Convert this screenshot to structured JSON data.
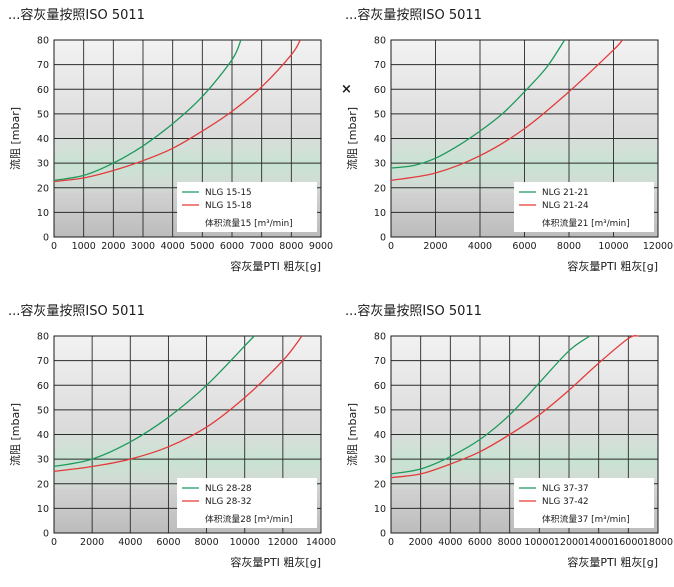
{
  "stray_mark": "×",
  "chart_data": [
    {
      "type": "line",
      "title": "...容灰量按照ISO 5011",
      "xlabel": "容灰量PTI 粗灰[g]",
      "ylabel": "流阻 [mbar]",
      "xlim": [
        0,
        9000
      ],
      "ylim": [
        0,
        80
      ],
      "x_ticks": [
        "0",
        "1000",
        "2000",
        "3000",
        "4000",
        "5000",
        "6000",
        "7000",
        "8000",
        "9000"
      ],
      "y_ticks": [
        "0",
        "10",
        "20",
        "30",
        "40",
        "50",
        "60",
        "70",
        "80"
      ],
      "legend_note": "体积流量15 [m³/min]",
      "legend_position": "bottom-right",
      "series": [
        {
          "name": "NLG 15-15",
          "color": "#1e9a5c",
          "x": [
            0,
            1000,
            2000,
            3000,
            4000,
            5000,
            6000,
            6300
          ],
          "y": [
            23,
            25,
            30,
            37,
            46,
            57,
            72,
            80
          ]
        },
        {
          "name": "NLG 15-18",
          "color": "#e33b3b",
          "x": [
            0,
            1000,
            2000,
            3000,
            4000,
            5000,
            6000,
            7000,
            8000,
            8300
          ],
          "y": [
            22.5,
            24,
            27,
            31,
            36,
            43,
            51,
            61,
            74,
            80
          ]
        }
      ]
    },
    {
      "type": "line",
      "title": "...容灰量按照ISO 5011",
      "xlabel": "容灰量PTI 粗灰[g]",
      "ylabel": "流阻 [mbar]",
      "xlim": [
        0,
        12000
      ],
      "ylim": [
        0,
        80
      ],
      "x_ticks": [
        "0",
        "2000",
        "4000",
        "6000",
        "8000",
        "10000",
        "12000"
      ],
      "y_ticks": [
        "0",
        "10",
        "20",
        "30",
        "40",
        "50",
        "60",
        "70",
        "80"
      ],
      "legend_note": "体积流量21 [m³/min]",
      "legend_position": "bottom-right",
      "series": [
        {
          "name": "NLG 21-21",
          "color": "#1e9a5c",
          "x": [
            0,
            1000,
            2000,
            3000,
            4000,
            5000,
            6000,
            7000,
            7800
          ],
          "y": [
            28,
            29,
            32,
            37,
            43,
            50,
            59,
            69,
            80
          ]
        },
        {
          "name": "NLG 21-24",
          "color": "#e33b3b",
          "x": [
            0,
            2000,
            4000,
            6000,
            8000,
            10000,
            10400
          ],
          "y": [
            23,
            26,
            33,
            44,
            59,
            76,
            80
          ]
        }
      ]
    },
    {
      "type": "line",
      "title": "...容灰量按照ISO 5011",
      "xlabel": "容灰量PTI 粗灰[g]",
      "ylabel": "流阻 [mbar]",
      "xlim": [
        0,
        14000
      ],
      "ylim": [
        0,
        80
      ],
      "x_ticks": [
        "0",
        "2000",
        "4000",
        "6000",
        "8000",
        "10000",
        "12000",
        "14000"
      ],
      "y_ticks": [
        "0",
        "10",
        "20",
        "30",
        "40",
        "50",
        "60",
        "70",
        "80"
      ],
      "legend_note": "体积流量28 [m³/min]",
      "legend_position": "bottom-right",
      "series": [
        {
          "name": "NLG 28-28",
          "color": "#1e9a5c",
          "x": [
            0,
            2000,
            4000,
            6000,
            8000,
            10000,
            10500
          ],
          "y": [
            27,
            30,
            37,
            47,
            60,
            76,
            80
          ]
        },
        {
          "name": "NLG 28-32",
          "color": "#e33b3b",
          "x": [
            0,
            2000,
            4000,
            6000,
            8000,
            10000,
            12000,
            13000
          ],
          "y": [
            25,
            27,
            30,
            35,
            43,
            55,
            70,
            80
          ]
        }
      ]
    },
    {
      "type": "line",
      "title": "...容灰量按照ISO 5011",
      "xlabel": "容灰量PTI 粗灰[g]",
      "ylabel": "流阻 [mbar]",
      "xlim": [
        0,
        18000
      ],
      "ylim": [
        0,
        80
      ],
      "x_ticks": [
        "0",
        "2000",
        "4000",
        "6000",
        "8000",
        "10000",
        "12000",
        "14000",
        "16000",
        "18000"
      ],
      "y_ticks": [
        "0",
        "10",
        "20",
        "30",
        "40",
        "50",
        "60",
        "70",
        "80"
      ],
      "legend_note": "体积流量37 [m³/min]",
      "legend_position": "bottom-right",
      "series": [
        {
          "name": "NLG 37-37",
          "color": "#1e9a5c",
          "x": [
            0,
            2000,
            4000,
            6000,
            8000,
            10000,
            12000,
            13400
          ],
          "y": [
            24,
            26,
            31,
            38,
            48,
            61,
            74,
            80
          ]
        },
        {
          "name": "NLG 37-42",
          "color": "#e33b3b",
          "x": [
            0,
            2000,
            4000,
            6000,
            8000,
            10000,
            12000,
            14000,
            16000,
            16700
          ],
          "y": [
            22.5,
            24,
            28,
            33,
            40,
            48,
            58,
            69,
            79,
            80
          ]
        }
      ]
    }
  ]
}
